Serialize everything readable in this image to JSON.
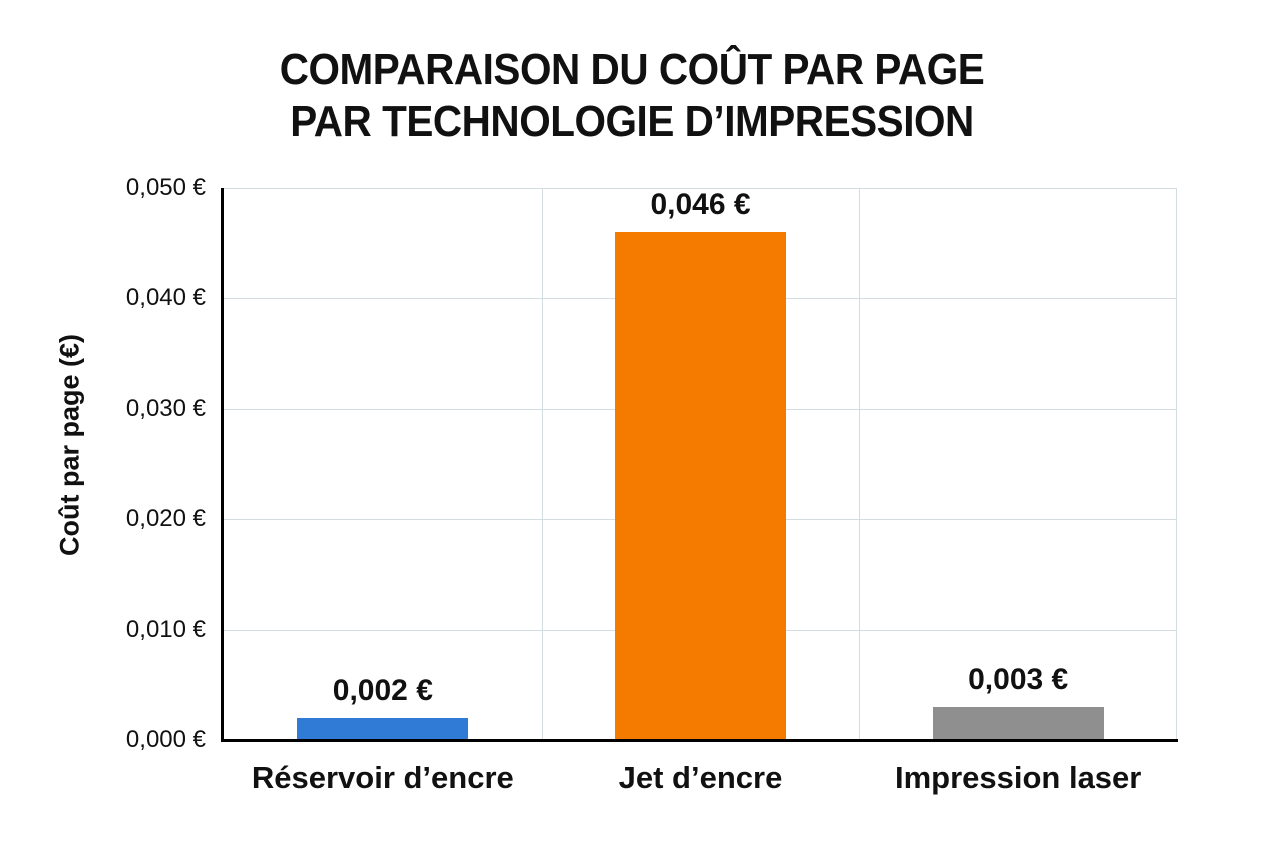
{
  "chart_data": {
    "type": "bar",
    "title": "COMPARAISON DU COÛT PAR PAGE PAR TECHNOLOGIE D’IMPRESSION",
    "title_lines": [
      "COMPARAISON DU COÛT PAR PAGE",
      "PAR TECHNOLOGIE D’IMPRESSION"
    ],
    "xlabel": "",
    "ylabel": "Coût par page (€)",
    "categories": [
      "Réservoir d’encre",
      "Jet d’encre",
      "Impression laser"
    ],
    "values": [
      0.002,
      0.046,
      0.003
    ],
    "value_labels": [
      "0,002 €",
      "0,046 €",
      "0,003 €"
    ],
    "colors": [
      "#2f7bd6",
      "#f47b00",
      "#8f8f8f"
    ],
    "ylim": [
      0,
      0.05
    ],
    "yticks": [
      0.0,
      0.01,
      0.02,
      0.03,
      0.04,
      0.05
    ],
    "ytick_labels": [
      "0,000 €",
      "0,010 €",
      "0,020 €",
      "0,030 €",
      "0,040 €",
      "0,050 €"
    ],
    "grid": true,
    "legend": null
  }
}
